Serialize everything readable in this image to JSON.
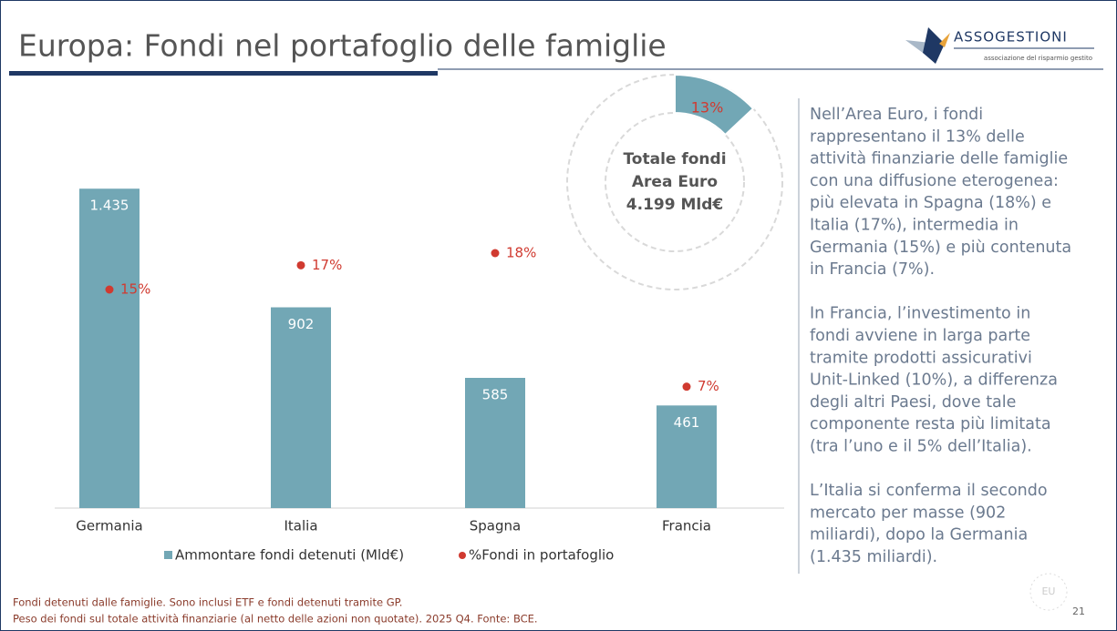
{
  "header": {
    "title": "Europa: Fondi nel portafoglio delle famiglie",
    "logo": "ASSOGESTIONI",
    "logo_subtitle": "associazione del risparmio gestito"
  },
  "chart_data": [
    {
      "type": "bar",
      "categories": [
        "Germania",
        "Italia",
        "Spagna",
        "Francia"
      ],
      "series": [
        {
          "name": "Ammontare fondi detenuti (Mld€)",
          "color": "#72a7b5",
          "values": [
            1435,
            902,
            585,
            461
          ],
          "value_labels": [
            "1.435",
            "902",
            "585",
            "461"
          ]
        },
        {
          "name": "%Fondi in portafoglio",
          "type": "scatter",
          "axis": "y2",
          "color": "#d03a30",
          "values": [
            15,
            17,
            18,
            7
          ],
          "value_labels": [
            "15%",
            "17%",
            "18%",
            "7%"
          ]
        }
      ],
      "ylim": [
        0,
        1800
      ],
      "y2lim": [
        -3,
        30
      ]
    },
    {
      "type": "pie",
      "values": [
        13,
        87
      ],
      "value_labels": [
        "13%",
        null
      ],
      "color": "#72a7b5",
      "center_text": [
        "Totale fondi",
        "Area Euro",
        "4.199 Mld€"
      ]
    }
  ],
  "side_text": [
    [
      "Nell’Area Euro, i fondi",
      "rappresentano il 13% delle",
      "attività finanziarie delle famiglie",
      "con una diffusione eterogenea:",
      "più elevata in Spagna (18%) e",
      "Italia (17%), intermedia in",
      "Germania (15%) e più contenuta",
      "in Francia (7%)."
    ],
    [
      "In Francia, l’investimento in",
      "fondi avviene in larga parte",
      "tramite prodotti assicurativi",
      "Unit-Linked (10%), a differenza",
      "degli altri Paesi, dove tale",
      "componente resta più limitata",
      "(tra l’uno e il 5% dell’Italia)."
    ],
    [
      "L’Italia si conferma il secondo",
      "mercato per masse (902",
      "miliardi), dopo la Germania",
      "(1.435 miliardi)."
    ]
  ],
  "footer": {
    "notes": [
      "Fondi detenuti dalle famiglie. Sono inclusi ETF e fondi detenuti tramite GP.",
      "Peso dei fondi sul totale attività finanziarie (al netto delle azioni non quotate). 2025 Q4. Fonte: BCE."
    ],
    "badge": "EU",
    "page": "21"
  }
}
